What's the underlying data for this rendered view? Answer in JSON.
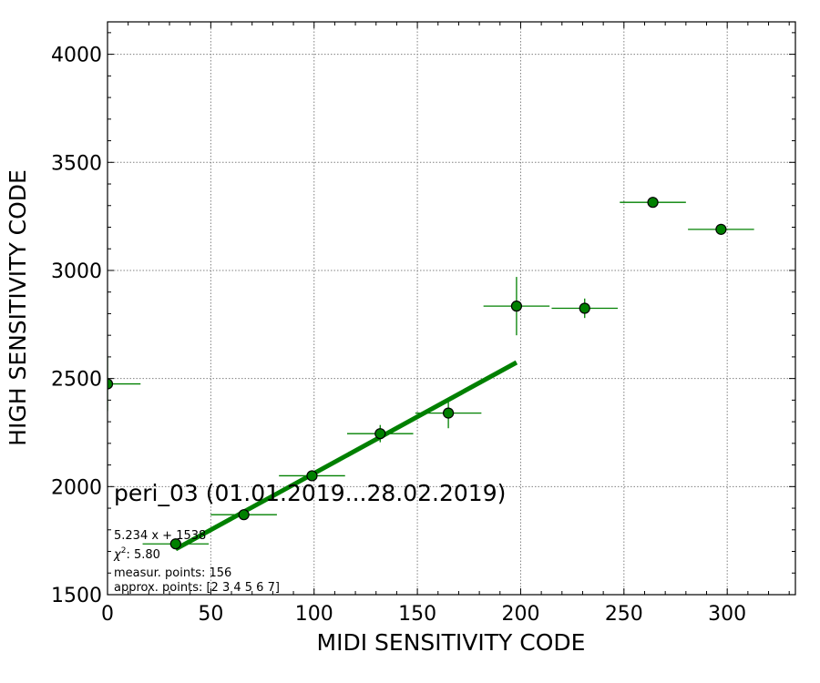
{
  "chart_data": {
    "type": "scatter",
    "title": "peri_03 (01.01.2019...28.02.2019)",
    "xlabel": "MIDI SENSITIVITY CODE",
    "ylabel": "HIGH SENSITIVITY CODE",
    "xlim": [
      0,
      333
    ],
    "ylim": [
      1500,
      4150
    ],
    "xticks": [
      0,
      50,
      100,
      150,
      200,
      250,
      300
    ],
    "yticks": [
      1500,
      2000,
      2500,
      3000,
      3500,
      4000
    ],
    "grid": true,
    "colors": {
      "marker_fill": "#008000",
      "marker_edge": "#000000",
      "errorbar": "#008000",
      "fit_line": "#008000",
      "grid": "#808080"
    },
    "series": [
      {
        "type": "errorbar-scatter",
        "points": [
          {
            "x": 0,
            "y": 2475,
            "xerr": 16,
            "yerr": 125
          },
          {
            "x": 33,
            "y": 1735,
            "xerr": 16,
            "yerr": 20
          },
          {
            "x": 66,
            "y": 1870,
            "xerr": 16,
            "yerr": 18
          },
          {
            "x": 99,
            "y": 2050,
            "xerr": 16,
            "yerr": 20
          },
          {
            "x": 132,
            "y": 2245,
            "xerr": 16,
            "yerr": 40
          },
          {
            "x": 165,
            "y": 2340,
            "xerr": 16,
            "yerr": 70
          },
          {
            "x": 198,
            "y": 2835,
            "xerr": 16,
            "yerr": 135
          },
          {
            "x": 231,
            "y": 2825,
            "xerr": 16,
            "yerr": 45
          },
          {
            "x": 264,
            "y": 3315,
            "xerr": 16,
            "yerr": 20
          },
          {
            "x": 297,
            "y": 3190,
            "xerr": 16,
            "yerr": 15
          }
        ]
      },
      {
        "type": "fit-line",
        "slope": 5.234,
        "intercept": 1538,
        "x_range": [
          33,
          198
        ]
      }
    ],
    "annotations": {
      "fit_equation": "5.234 x + 1538",
      "chi2_label": "χ",
      "chi2_sup": "2",
      "chi2_value": ": 5.80",
      "measur_points": "measur. points: 156",
      "approx_points": "approx. points: [2 3 4 5 6 7]"
    }
  }
}
